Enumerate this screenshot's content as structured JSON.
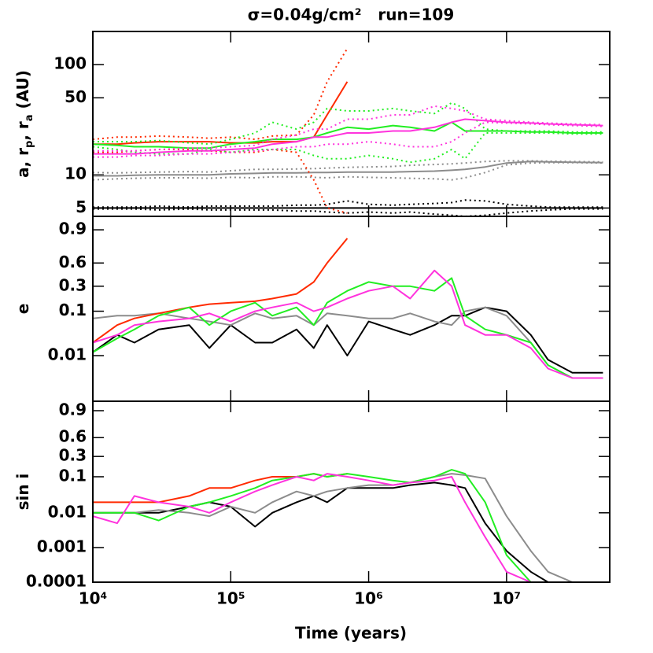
{
  "chart_data": {
    "type": "line",
    "title": "σ=0.04g/cm²   run=109",
    "xlabel": "Time (years)",
    "xscale": "log",
    "x": [
      10000,
      15000,
      20000,
      30000,
      50000,
      70000,
      100000,
      150000,
      200000,
      300000,
      400000,
      500000,
      700000,
      1000000,
      1500000,
      2000000,
      3000000,
      4000000,
      5000000,
      7000000,
      10000000,
      15000000,
      20000000,
      30000000,
      50000000
    ],
    "xlim": [
      10000,
      56000000
    ],
    "xticks": [
      {
        "value": 10000,
        "label": "10⁴"
      },
      {
        "value": 100000,
        "label": "10⁵"
      },
      {
        "value": 1000000,
        "label": "10⁶"
      },
      {
        "value": 10000000,
        "label": "10⁷"
      }
    ],
    "panels": [
      {
        "ylabel": [
          "a, r",
          "p",
          ", r",
          "a",
          " (AU)"
        ],
        "ylabel_sub": [
          false,
          true,
          false,
          true,
          false
        ],
        "yscale": "log",
        "ylim": [
          4.2,
          200
        ],
        "yticks": [
          5,
          10,
          50,
          100
        ],
        "series": [
          {
            "color": "#000000",
            "style": "solid",
            "values": [
              5,
              5,
              5,
              5,
              5,
              5,
              5,
              5,
              5,
              5,
              5,
              5,
              5,
              5,
              5,
              5,
              5,
              5,
              5,
              5,
              5,
              5,
              5,
              5,
              5
            ]
          },
          {
            "color": "#000000",
            "style": "dotted",
            "values": [
              4.9,
              4.9,
              4.9,
              4.8,
              4.9,
              4.8,
              4.8,
              4.8,
              4.8,
              4.7,
              4.7,
              4.6,
              4.5,
              4.6,
              4.5,
              4.6,
              4.4,
              4.3,
              4.2,
              4.3,
              4.5,
              4.7,
              4.8,
              4.9,
              4.9
            ]
          },
          {
            "color": "#000000",
            "style": "dotted",
            "values": [
              5.1,
              5.1,
              5.1,
              5.2,
              5.1,
              5.2,
              5.2,
              5.2,
              5.2,
              5.3,
              5.3,
              5.4,
              5.8,
              5.4,
              5.3,
              5.4,
              5.5,
              5.6,
              5.9,
              5.8,
              5.4,
              5.2,
              5.1,
              5.1,
              5.1
            ]
          },
          {
            "color": "#8c8c8c",
            "style": "solid",
            "values": [
              9.8,
              9.8,
              9.9,
              10,
              10,
              10,
              10.2,
              10.3,
              10.4,
              10.4,
              10.5,
              10.5,
              10.6,
              10.6,
              10.6,
              10.7,
              10.8,
              11,
              11.2,
              11.8,
              12.8,
              13.2,
              13.1,
              13,
              12.9
            ]
          },
          {
            "color": "#8c8c8c",
            "style": "dotted",
            "values": [
              9,
              9.2,
              9.3,
              9.4,
              9.4,
              9.3,
              9.5,
              9.4,
              9.6,
              9.6,
              9.5,
              9.4,
              9.6,
              9.5,
              9.4,
              9.3,
              9.2,
              9,
              9.4,
              10.5,
              12.3,
              12.8,
              12.9,
              12.9,
              12.8
            ]
          },
          {
            "color": "#8c8c8c",
            "style": "dotted",
            "values": [
              10.5,
              10.4,
              10.5,
              10.6,
              10.7,
              10.6,
              10.9,
              11.2,
              11.2,
              11.3,
              11.4,
              11.5,
              11.7,
              11.8,
              11.9,
              12.2,
              12.4,
              12.6,
              12.8,
              13.2,
              13.4,
              13.4,
              13.3,
              13.2,
              13.1
            ]
          },
          {
            "color": "#ff2a00",
            "style": "solid",
            "values": [
              19,
              19,
              19.5,
              20,
              20,
              20,
              19.5,
              19.5,
              20,
              20,
              22,
              35,
              70,
              null,
              null,
              null,
              null,
              null,
              null,
              null,
              null,
              null,
              null,
              null,
              null
            ]
          },
          {
            "color": "#ff2a00",
            "style": "dotted",
            "values": [
              16,
              16,
              16.5,
              17,
              17,
              16.5,
              16,
              16,
              17,
              16,
              9,
              5,
              4.5,
              null,
              null,
              null,
              null,
              null,
              null,
              null,
              null,
              null,
              null,
              null,
              null
            ]
          },
          {
            "color": "#ff2a00",
            "style": "dotted",
            "values": [
              21,
              22,
              22,
              22.5,
              22,
              21.5,
              22,
              21,
              22.5,
              23,
              35,
              70,
              140,
              null,
              null,
              null,
              null,
              null,
              null,
              null,
              null,
              null,
              null,
              null,
              null
            ]
          },
          {
            "color": "#22ee22",
            "style": "solid",
            "values": [
              19,
              18.5,
              18,
              18,
              17.5,
              17.5,
              19,
              20,
              21,
              21,
              22,
              24,
              27,
              26,
              28,
              27,
              25,
              30,
              25,
              25,
              25,
              24.5,
              24.5,
              24,
              24
            ]
          },
          {
            "color": "#22ee22",
            "style": "dotted",
            "values": [
              18,
              17,
              16,
              15.5,
              15.5,
              17,
              16,
              17,
              17,
              17,
              15,
              14,
              14,
              15,
              14,
              13,
              14,
              17,
              14,
              24,
              24,
              24,
              24,
              23.5,
              23.5
            ]
          },
          {
            "color": "#22ee22",
            "style": "dotted",
            "values": [
              20,
              20,
              20,
              20.5,
              19.5,
              19,
              21,
              24,
              30,
              26,
              30,
              40,
              38,
              38,
              40,
              38,
              36,
              45,
              40,
              26,
              25,
              25,
              25,
              24.5,
              24.5
            ]
          },
          {
            "color": "#ff33dd",
            "style": "solid",
            "values": [
              15.5,
              15.5,
              15.5,
              16,
              16.5,
              16.5,
              17,
              17.5,
              19,
              20,
              22,
              22,
              24,
              24,
              25,
              25,
              27,
              30,
              32,
              31,
              30,
              29.5,
              29,
              28.5,
              28
            ]
          },
          {
            "color": "#ff33dd",
            "style": "dotted",
            "values": [
              14.5,
              14.5,
              15,
              15,
              15.5,
              15.5,
              16,
              16.5,
              17,
              18,
              18,
              19,
              19,
              20,
              19,
              18,
              18,
              20,
              24,
              30,
              29.5,
              29,
              28.5,
              28,
              27.5
            ]
          },
          {
            "color": "#ff33dd",
            "style": "dotted",
            "values": [
              16.5,
              16.5,
              16.5,
              17,
              17.5,
              17.5,
              18,
              18.5,
              21,
              23,
              26,
              26,
              32,
              32,
              35,
              35,
              42,
              40,
              38,
              32,
              31,
              30,
              29.5,
              29,
              28.5
            ]
          }
        ]
      },
      {
        "ylabel": [
          "e"
        ],
        "ylabel_sub": [
          false
        ],
        "yscale": "logit",
        "ylim": [
          0.00086,
          0.949
        ],
        "yticks": [
          0.01,
          0.1,
          0.3,
          0.6,
          0.9
        ],
        "series": [
          {
            "color": "#000000",
            "style": "solid",
            "values": [
              0.012,
              0.03,
              0.02,
              0.04,
              0.05,
              0.015,
              0.05,
              0.02,
              0.02,
              0.04,
              0.015,
              0.05,
              0.01,
              0.06,
              0.04,
              0.03,
              0.05,
              0.08,
              0.08,
              0.12,
              0.1,
              0.03,
              0.008,
              0.004,
              0.004
            ]
          },
          {
            "color": "#8c8c8c",
            "style": "solid",
            "values": [
              0.07,
              0.08,
              0.08,
              0.09,
              0.07,
              0.06,
              0.05,
              0.09,
              0.07,
              0.08,
              0.05,
              0.09,
              0.08,
              0.07,
              0.07,
              0.09,
              0.06,
              0.05,
              0.1,
              0.12,
              0.08,
              0.02,
              0.006,
              0.003,
              0.003
            ]
          },
          {
            "color": "#ff2a00",
            "style": "solid",
            "values": [
              0.02,
              0.05,
              0.07,
              0.09,
              0.12,
              0.14,
              0.15,
              0.16,
              0.18,
              0.22,
              0.35,
              0.6,
              0.85,
              null,
              null,
              null,
              null,
              null,
              null,
              null,
              null,
              null,
              null,
              null,
              null
            ]
          },
          {
            "color": "#22ee22",
            "style": "solid",
            "values": [
              0.012,
              0.025,
              0.04,
              0.08,
              0.12,
              0.05,
              0.1,
              0.15,
              0.08,
              0.12,
              0.05,
              0.15,
              0.25,
              0.35,
              0.3,
              0.3,
              0.25,
              0.4,
              0.08,
              0.04,
              0.03,
              0.02,
              0.006,
              0.003,
              0.003
            ]
          },
          {
            "color": "#ff33dd",
            "style": "solid",
            "values": [
              0.02,
              0.03,
              0.05,
              0.06,
              0.07,
              0.09,
              0.06,
              0.1,
              0.12,
              0.15,
              0.1,
              0.12,
              0.18,
              0.25,
              0.3,
              0.18,
              0.5,
              0.3,
              0.05,
              0.03,
              0.03,
              0.015,
              0.005,
              0.003,
              0.003
            ]
          }
        ]
      },
      {
        "ylabel": [
          "sin i"
        ],
        "ylabel_sub": [
          false
        ],
        "yscale": "logit",
        "ylim": [
          0.0001,
          0.944
        ],
        "yticks": [
          0.0001,
          0.001,
          0.01,
          0.1,
          0.3,
          0.6,
          0.9
        ],
        "series": [
          {
            "color": "#000000",
            "style": "solid",
            "values": [
              0.01,
              0.01,
              0.01,
              0.01,
              0.015,
              0.02,
              0.015,
              0.004,
              0.01,
              0.02,
              0.03,
              0.02,
              0.05,
              0.05,
              0.05,
              0.06,
              0.07,
              0.06,
              0.05,
              0.005,
              0.0008,
              0.0002,
              0.0001,
              null,
              null
            ]
          },
          {
            "color": "#8c8c8c",
            "style": "solid",
            "values": [
              0.01,
              0.01,
              0.01,
              0.012,
              0.01,
              0.008,
              0.015,
              0.01,
              0.02,
              0.04,
              0.03,
              0.04,
              0.05,
              0.06,
              0.06,
              0.07,
              0.1,
              0.12,
              0.11,
              0.09,
              0.008,
              0.0008,
              0.0002,
              0.0001,
              null
            ]
          },
          {
            "color": "#ff2a00",
            "style": "solid",
            "values": [
              0.02,
              0.02,
              0.02,
              0.02,
              0.03,
              0.05,
              0.05,
              0.08,
              0.1,
              0.1,
              0.12,
              0.1,
              0.12,
              null,
              null,
              null,
              null,
              null,
              null,
              null,
              null,
              null,
              null,
              null,
              null
            ]
          },
          {
            "color": "#22ee22",
            "style": "solid",
            "values": [
              0.01,
              0.01,
              0.01,
              0.006,
              0.015,
              0.02,
              0.03,
              0.05,
              0.08,
              0.1,
              0.12,
              0.1,
              0.12,
              0.1,
              0.08,
              0.07,
              0.1,
              0.15,
              0.12,
              0.02,
              0.0006,
              0.0001,
              null,
              null,
              null
            ]
          },
          {
            "color": "#ff33dd",
            "style": "solid",
            "values": [
              0.008,
              0.005,
              0.03,
              0.02,
              0.015,
              0.01,
              0.02,
              0.04,
              0.06,
              0.1,
              0.08,
              0.12,
              0.1,
              0.08,
              0.06,
              0.07,
              0.08,
              0.1,
              0.02,
              0.002,
              0.0002,
              0.0001,
              null,
              null,
              null
            ]
          }
        ]
      }
    ]
  }
}
